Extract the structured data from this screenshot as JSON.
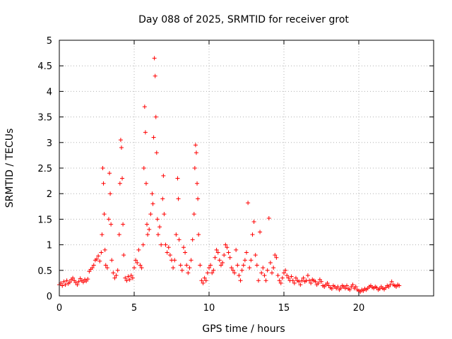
{
  "chart_data": {
    "type": "scatter",
    "title": "Day 088 of 2025, SRMTID for receiver grot",
    "xlabel": "GPS time / hours",
    "ylabel": "SRMTID / TECUs",
    "xlim": [
      0,
      25
    ],
    "ylim": [
      0,
      5
    ],
    "grid": true,
    "marker": "plus",
    "marker_color": "#ff0000",
    "x_ticks": [
      0,
      5,
      10,
      15,
      20
    ],
    "x_tick_labels": [
      "0",
      "5",
      "10",
      "15",
      "20"
    ],
    "y_ticks": [
      0,
      0.5,
      1,
      1.5,
      2,
      2.5,
      3,
      3.5,
      4,
      4.5,
      5
    ],
    "y_tick_labels": [
      "0",
      "0.5",
      "1",
      "1.5",
      "2",
      "2.5",
      "3",
      "3.5",
      "4",
      "4.5",
      "5"
    ],
    "series": [
      {
        "name": "SRMTID",
        "points": [
          [
            0.0,
            0.22
          ],
          [
            0.1,
            0.25
          ],
          [
            0.2,
            0.2
          ],
          [
            0.3,
            0.28
          ],
          [
            0.4,
            0.22
          ],
          [
            0.5,
            0.3
          ],
          [
            0.6,
            0.24
          ],
          [
            0.7,
            0.27
          ],
          [
            0.8,
            0.32
          ],
          [
            0.9,
            0.35
          ],
          [
            1.0,
            0.3
          ],
          [
            1.1,
            0.26
          ],
          [
            1.2,
            0.22
          ],
          [
            1.3,
            0.28
          ],
          [
            1.4,
            0.34
          ],
          [
            1.5,
            0.3
          ],
          [
            1.6,
            0.27
          ],
          [
            1.7,
            0.32
          ],
          [
            1.8,
            0.29
          ],
          [
            1.9,
            0.33
          ],
          [
            2.0,
            0.48
          ],
          [
            2.1,
            0.52
          ],
          [
            2.2,
            0.55
          ],
          [
            2.3,
            0.6
          ],
          [
            2.4,
            0.7
          ],
          [
            2.5,
            0.72
          ],
          [
            2.6,
            0.78
          ],
          [
            2.7,
            0.68
          ],
          [
            2.8,
            0.85
          ],
          [
            2.85,
            1.2
          ],
          [
            2.9,
            2.5
          ],
          [
            2.95,
            2.2
          ],
          [
            3.0,
            1.6
          ],
          [
            3.05,
            0.9
          ],
          [
            3.1,
            0.6
          ],
          [
            3.2,
            0.55
          ],
          [
            3.3,
            1.5
          ],
          [
            3.35,
            2.4
          ],
          [
            3.4,
            2.0
          ],
          [
            3.45,
            1.4
          ],
          [
            3.5,
            0.7
          ],
          [
            3.6,
            0.45
          ],
          [
            3.7,
            0.35
          ],
          [
            3.8,
            0.4
          ],
          [
            3.9,
            0.5
          ],
          [
            4.0,
            1.2
          ],
          [
            4.05,
            2.2
          ],
          [
            4.1,
            3.05
          ],
          [
            4.15,
            2.9
          ],
          [
            4.2,
            2.3
          ],
          [
            4.25,
            1.4
          ],
          [
            4.3,
            0.8
          ],
          [
            4.4,
            0.35
          ],
          [
            4.5,
            0.3
          ],
          [
            4.6,
            0.38
          ],
          [
            4.7,
            0.32
          ],
          [
            4.8,
            0.4
          ],
          [
            4.9,
            0.35
          ],
          [
            5.0,
            0.55
          ],
          [
            5.1,
            0.7
          ],
          [
            5.2,
            0.65
          ],
          [
            5.3,
            0.9
          ],
          [
            5.4,
            0.6
          ],
          [
            5.5,
            0.55
          ],
          [
            5.6,
            1.0
          ],
          [
            5.65,
            2.5
          ],
          [
            5.7,
            3.7
          ],
          [
            5.75,
            3.2
          ],
          [
            5.8,
            2.2
          ],
          [
            5.85,
            1.4
          ],
          [
            5.9,
            1.2
          ],
          [
            6.0,
            1.3
          ],
          [
            6.1,
            1.6
          ],
          [
            6.2,
            2.0
          ],
          [
            6.25,
            1.8
          ],
          [
            6.3,
            3.1
          ],
          [
            6.35,
            4.65
          ],
          [
            6.4,
            4.3
          ],
          [
            6.45,
            3.5
          ],
          [
            6.5,
            2.8
          ],
          [
            6.55,
            1.5
          ],
          [
            6.6,
            1.2
          ],
          [
            6.7,
            1.35
          ],
          [
            6.8,
            1.0
          ],
          [
            6.9,
            1.9
          ],
          [
            6.95,
            2.35
          ],
          [
            7.0,
            1.6
          ],
          [
            7.1,
            1.0
          ],
          [
            7.2,
            0.85
          ],
          [
            7.3,
            0.95
          ],
          [
            7.4,
            0.8
          ],
          [
            7.5,
            0.7
          ],
          [
            7.6,
            0.55
          ],
          [
            7.7,
            0.7
          ],
          [
            7.8,
            1.2
          ],
          [
            7.9,
            2.3
          ],
          [
            7.95,
            1.9
          ],
          [
            8.0,
            1.1
          ],
          [
            8.1,
            0.6
          ],
          [
            8.2,
            0.5
          ],
          [
            8.3,
            0.95
          ],
          [
            8.4,
            0.85
          ],
          [
            8.5,
            0.6
          ],
          [
            8.6,
            0.45
          ],
          [
            8.7,
            0.55
          ],
          [
            8.8,
            0.7
          ],
          [
            8.9,
            1.1
          ],
          [
            9.0,
            1.6
          ],
          [
            9.05,
            2.5
          ],
          [
            9.1,
            2.95
          ],
          [
            9.15,
            2.8
          ],
          [
            9.2,
            2.2
          ],
          [
            9.25,
            1.9
          ],
          [
            9.3,
            1.2
          ],
          [
            9.4,
            0.6
          ],
          [
            9.5,
            0.3
          ],
          [
            9.6,
            0.25
          ],
          [
            9.7,
            0.35
          ],
          [
            9.8,
            0.3
          ],
          [
            9.9,
            0.45
          ],
          [
            10.0,
            0.55
          ],
          [
            10.1,
            0.6
          ],
          [
            10.2,
            0.45
          ],
          [
            10.3,
            0.5
          ],
          [
            10.4,
            0.75
          ],
          [
            10.5,
            0.9
          ],
          [
            10.6,
            0.85
          ],
          [
            10.7,
            0.7
          ],
          [
            10.8,
            0.6
          ],
          [
            10.9,
            0.65
          ],
          [
            11.0,
            0.8
          ],
          [
            11.1,
            1.0
          ],
          [
            11.2,
            0.95
          ],
          [
            11.3,
            0.85
          ],
          [
            11.4,
            0.75
          ],
          [
            11.5,
            0.55
          ],
          [
            11.6,
            0.5
          ],
          [
            11.7,
            0.45
          ],
          [
            11.8,
            0.9
          ],
          [
            11.9,
            0.6
          ],
          [
            12.0,
            0.4
          ],
          [
            12.1,
            0.3
          ],
          [
            12.2,
            0.5
          ],
          [
            12.3,
            0.6
          ],
          [
            12.4,
            0.7
          ],
          [
            12.5,
            0.85
          ],
          [
            12.6,
            1.82
          ],
          [
            12.7,
            0.55
          ],
          [
            12.8,
            0.7
          ],
          [
            12.9,
            1.2
          ],
          [
            13.0,
            1.45
          ],
          [
            13.1,
            0.8
          ],
          [
            13.2,
            0.6
          ],
          [
            13.3,
            0.3
          ],
          [
            13.4,
            1.25
          ],
          [
            13.5,
            0.45
          ],
          [
            13.6,
            0.55
          ],
          [
            13.7,
            0.4
          ],
          [
            13.8,
            0.3
          ],
          [
            13.9,
            0.5
          ],
          [
            14.0,
            1.52
          ],
          [
            14.1,
            0.65
          ],
          [
            14.2,
            0.45
          ],
          [
            14.3,
            0.55
          ],
          [
            14.4,
            0.8
          ],
          [
            14.5,
            0.75
          ],
          [
            14.6,
            0.4
          ],
          [
            14.7,
            0.3
          ],
          [
            14.8,
            0.25
          ],
          [
            14.9,
            0.35
          ],
          [
            15.0,
            0.45
          ],
          [
            15.1,
            0.5
          ],
          [
            15.2,
            0.4
          ],
          [
            15.3,
            0.35
          ],
          [
            15.4,
            0.3
          ],
          [
            15.5,
            0.38
          ],
          [
            15.6,
            0.3
          ],
          [
            15.7,
            0.25
          ],
          [
            15.8,
            0.35
          ],
          [
            15.9,
            0.3
          ],
          [
            16.0,
            0.28
          ],
          [
            16.1,
            0.22
          ],
          [
            16.2,
            0.3
          ],
          [
            16.3,
            0.35
          ],
          [
            16.4,
            0.28
          ],
          [
            16.5,
            0.3
          ],
          [
            16.6,
            0.4
          ],
          [
            16.7,
            0.3
          ],
          [
            16.8,
            0.25
          ],
          [
            16.9,
            0.32
          ],
          [
            17.0,
            0.3
          ],
          [
            17.1,
            0.28
          ],
          [
            17.2,
            0.22
          ],
          [
            17.3,
            0.25
          ],
          [
            17.4,
            0.32
          ],
          [
            17.5,
            0.28
          ],
          [
            17.6,
            0.2
          ],
          [
            17.7,
            0.18
          ],
          [
            17.8,
            0.22
          ],
          [
            17.9,
            0.25
          ],
          [
            18.0,
            0.2
          ],
          [
            18.1,
            0.16
          ],
          [
            18.2,
            0.14
          ],
          [
            18.3,
            0.2
          ],
          [
            18.4,
            0.18
          ],
          [
            18.5,
            0.15
          ],
          [
            18.6,
            0.18
          ],
          [
            18.7,
            0.12
          ],
          [
            18.8,
            0.15
          ],
          [
            18.9,
            0.2
          ],
          [
            19.0,
            0.18
          ],
          [
            19.1,
            0.15
          ],
          [
            19.2,
            0.2
          ],
          [
            19.3,
            0.14
          ],
          [
            19.4,
            0.12
          ],
          [
            19.5,
            0.18
          ],
          [
            19.6,
            0.22
          ],
          [
            19.7,
            0.15
          ],
          [
            19.8,
            0.18
          ],
          [
            19.9,
            0.12
          ],
          [
            20.0,
            0.1
          ],
          [
            20.1,
            0.08
          ],
          [
            20.2,
            0.12
          ],
          [
            20.3,
            0.1
          ],
          [
            20.4,
            0.14
          ],
          [
            20.5,
            0.12
          ],
          [
            20.6,
            0.15
          ],
          [
            20.7,
            0.18
          ],
          [
            20.8,
            0.2
          ],
          [
            20.9,
            0.17
          ],
          [
            21.0,
            0.15
          ],
          [
            21.1,
            0.18
          ],
          [
            21.2,
            0.16
          ],
          [
            21.3,
            0.12
          ],
          [
            21.4,
            0.14
          ],
          [
            21.5,
            0.18
          ],
          [
            21.6,
            0.15
          ],
          [
            21.7,
            0.13
          ],
          [
            21.8,
            0.16
          ],
          [
            21.9,
            0.2
          ],
          [
            22.0,
            0.18
          ],
          [
            22.1,
            0.22
          ],
          [
            22.2,
            0.28
          ],
          [
            22.3,
            0.22
          ],
          [
            22.4,
            0.2
          ],
          [
            22.5,
            0.18
          ],
          [
            22.6,
            0.22
          ],
          [
            22.7,
            0.2
          ]
        ]
      }
    ]
  }
}
